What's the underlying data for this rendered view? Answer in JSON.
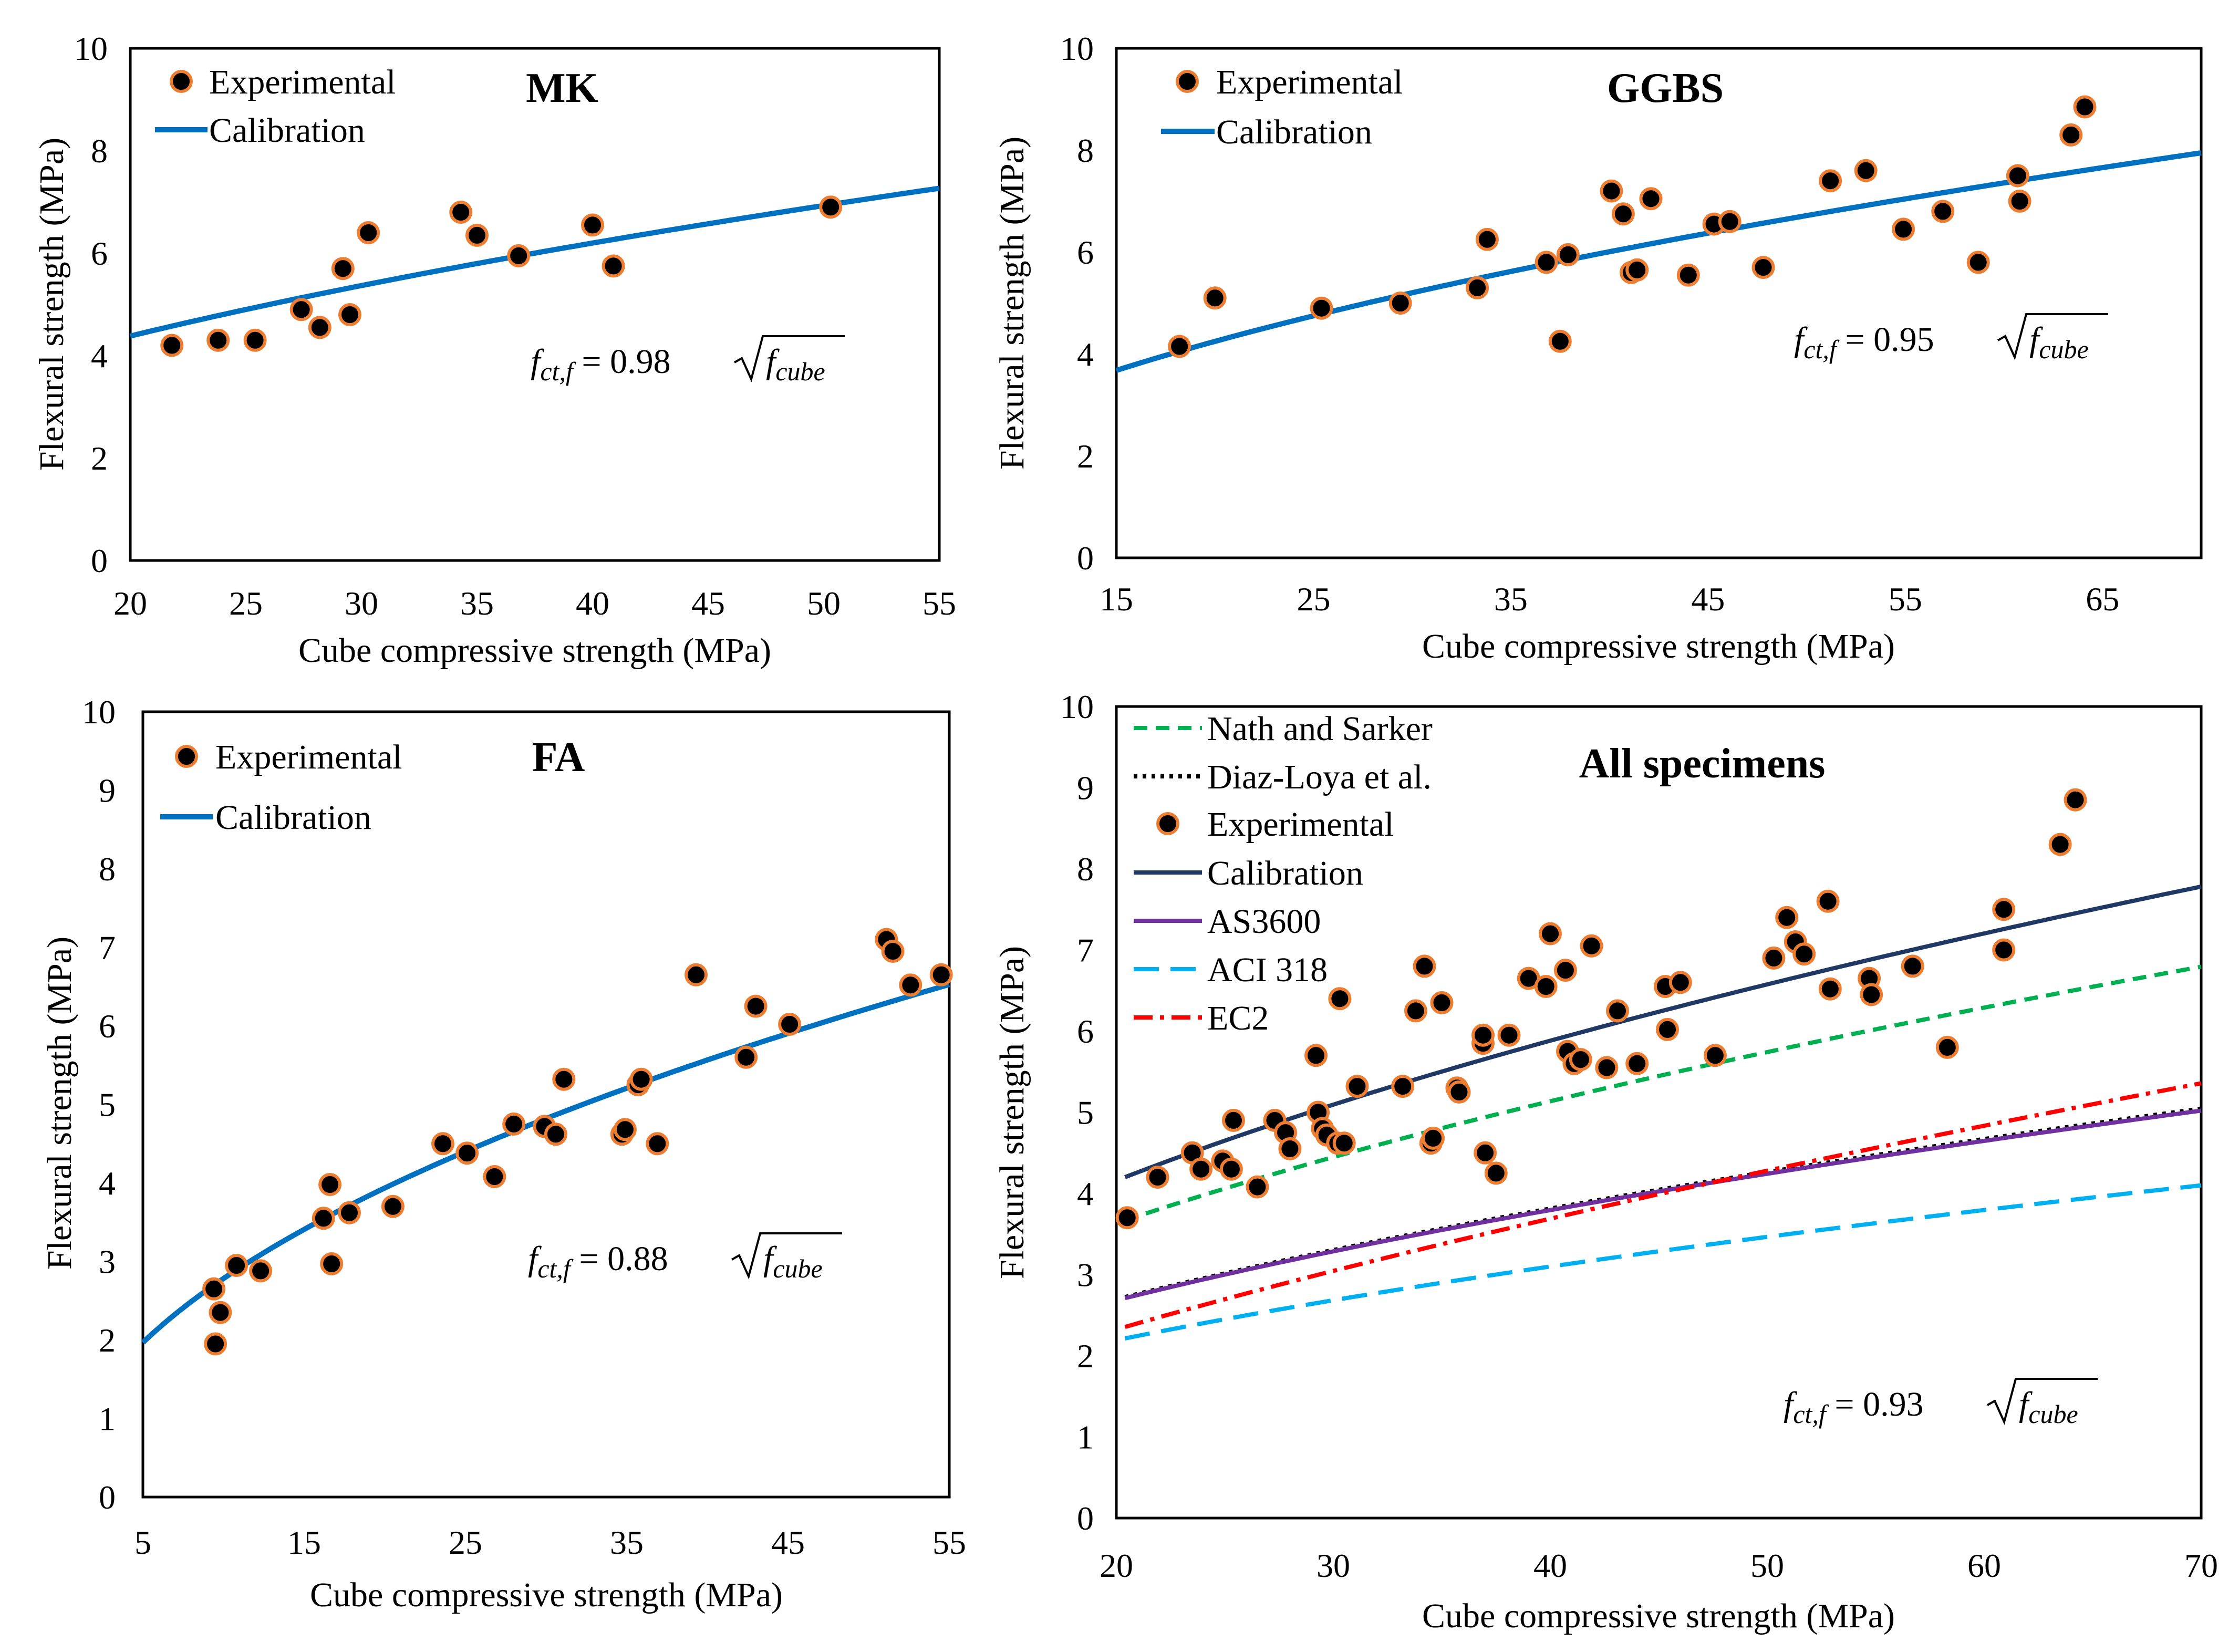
{
  "colors": {
    "marker_fill": "#000000",
    "marker_edge": "#ED7D31",
    "calibration_light": "#0070C0",
    "calibration_dark": "#1F3864",
    "nath": "#00B050",
    "diaz": "#000000",
    "as3600": "#7030A0",
    "aci": "#00B0F0",
    "ec2": "#FF0000"
  },
  "chart_data": [
    {
      "id": "mk",
      "type": "scatter",
      "title": "MK",
      "xlabel": "Cube compressive strength (MPa)",
      "ylabel": "Flexural strength (MPa)",
      "xlim": [
        20,
        55
      ],
      "ylim": [
        0,
        10
      ],
      "xticks": [
        20,
        25,
        30,
        35,
        40,
        45,
        50,
        55
      ],
      "yticks": [
        0,
        2,
        4,
        6,
        8,
        10
      ],
      "legend": [
        "Experimental",
        "Calibration"
      ],
      "equation": {
        "lhs": "f",
        "lhs_sub": "ct,f",
        "eq": " = ",
        "coef": "0.98",
        "rad": "f",
        "rad_sub": "cube"
      },
      "experimental": {
        "x": [
          21.8,
          23.8,
          25.4,
          27.4,
          28.2,
          29.2,
          29.5,
          30.3,
          34.3,
          35.0,
          36.8,
          40.0,
          40.9,
          50.3
        ],
        "y": [
          4.2,
          4.3,
          4.3,
          4.9,
          4.55,
          5.7,
          4.8,
          6.4,
          6.8,
          6.35,
          5.95,
          6.55,
          5.75,
          6.9
        ]
      },
      "curves": [
        {
          "name": "Calibration",
          "coef": 0.98,
          "x_range": [
            20,
            55
          ],
          "color_key": "calibration_light",
          "width": 10,
          "dash": ""
        }
      ]
    },
    {
      "id": "ggbs",
      "type": "scatter",
      "title": "GGBS",
      "xlabel": "Cube compressive strength (MPa)",
      "ylabel": "Flexural strength (MPa)",
      "xlim": [
        15,
        70
      ],
      "ylim": [
        0,
        10
      ],
      "xticks": [
        15,
        25,
        35,
        45,
        55,
        65
      ],
      "yticks": [
        0,
        2,
        4,
        6,
        8,
        10
      ],
      "legend": [
        "Experimental",
        "Calibration"
      ],
      "equation": {
        "lhs": "f",
        "lhs_sub": "ct,f",
        "eq": " = ",
        "coef": "0.95",
        "rad": "f",
        "rad_sub": "cube"
      },
      "experimental": {
        "x": [
          18.2,
          20.0,
          25.4,
          29.4,
          33.3,
          33.8,
          36.8,
          37.5,
          37.9,
          40.1,
          40.7,
          41.1,
          41.4,
          42.1,
          44.0,
          45.3,
          46.1,
          47.8,
          51.2,
          53.0,
          54.9,
          56.9,
          58.7,
          60.7,
          60.8,
          63.4,
          64.1
        ],
        "y": [
          4.15,
          5.1,
          4.9,
          5.0,
          5.3,
          6.25,
          5.8,
          4.25,
          5.95,
          7.2,
          6.75,
          5.6,
          5.65,
          7.05,
          5.55,
          6.55,
          6.6,
          5.7,
          7.4,
          7.6,
          6.45,
          6.8,
          5.8,
          7.5,
          7.0,
          8.3,
          8.85
        ]
      },
      "curves": [
        {
          "name": "Calibration",
          "coef": 0.95,
          "x_range": [
            15,
            70
          ],
          "color_key": "calibration_light",
          "width": 10,
          "dash": ""
        }
      ]
    },
    {
      "id": "fa",
      "type": "scatter",
      "title": "FA",
      "xlabel": "Cube compressive strength (MPa)",
      "ylabel": "Flexural strength (MPa)",
      "xlim": [
        5,
        55
      ],
      "ylim": [
        0,
        10
      ],
      "xticks": [
        5,
        15,
        25,
        35,
        45,
        55
      ],
      "yticks": [
        0,
        1,
        2,
        3,
        4,
        5,
        6,
        7,
        8,
        9,
        10
      ],
      "legend": [
        "Experimental",
        "Calibration"
      ],
      "equation": {
        "lhs": "f",
        "lhs_sub": "ct,f",
        "eq": " = ",
        "coef": "0.88",
        "rad": "f",
        "rad_sub": "cube"
      },
      "experimental": {
        "x": [
          9.4,
          9.5,
          9.8,
          10.8,
          12.3,
          16.2,
          16.6,
          16.7,
          17.8,
          20.5,
          23.6,
          25.1,
          26.8,
          28.0,
          29.9,
          30.6,
          31.1,
          34.7,
          34.9,
          35.7,
          35.9,
          36.9,
          39.3,
          42.4,
          43.0,
          45.1,
          51.1,
          51.5,
          52.6,
          54.5
        ],
        "y": [
          2.65,
          1.95,
          2.35,
          2.95,
          2.88,
          3.55,
          3.98,
          2.97,
          3.62,
          3.7,
          4.5,
          4.38,
          4.08,
          4.75,
          4.72,
          4.62,
          5.32,
          4.62,
          4.68,
          5.25,
          5.32,
          4.5,
          6.65,
          5.6,
          6.25,
          6.02,
          7.1,
          6.95,
          6.52,
          6.65
        ]
      },
      "curves": [
        {
          "name": "Calibration",
          "coef": 0.88,
          "x_range": [
            5,
            55
          ],
          "color_key": "calibration_light",
          "width": 10,
          "dash": ""
        }
      ]
    },
    {
      "id": "all",
      "type": "scatter",
      "title": "All specimens",
      "xlabel": "Cube compressive strength (MPa)",
      "ylabel": "Flexural strength (MPa)",
      "xlim": [
        20,
        70
      ],
      "ylim": [
        0,
        10
      ],
      "xticks": [
        20,
        30,
        40,
        50,
        60,
        70
      ],
      "yticks": [
        0,
        1,
        2,
        3,
        4,
        5,
        6,
        7,
        8,
        9,
        10
      ],
      "legend": [
        "Nath and Sarker",
        "Diaz-Loya et al.",
        "Experimental",
        "Calibration",
        "AS3600",
        "ACI 318",
        "EC2"
      ],
      "equation": {
        "lhs": "f",
        "lhs_sub": "ct,f",
        "eq": " = ",
        "coef": "0.93",
        "rad": "f",
        "rad_sub": "cube"
      },
      "experimental": {
        "x": [
          20.5,
          21.9,
          23.5,
          23.9,
          24.9,
          25.3,
          25.4,
          26.5,
          27.3,
          27.8,
          28.0,
          29.2,
          29.3,
          29.5,
          29.7,
          30.2,
          30.3,
          30.5,
          31.1,
          33.2,
          33.8,
          34.2,
          34.5,
          34.6,
          35.0,
          35.7,
          35.8,
          36.9,
          36.9,
          37.0,
          37.5,
          38.1,
          39.0,
          39.8,
          40.0,
          40.7,
          40.8,
          41.1,
          41.4,
          41.9,
          42.6,
          43.1,
          44.0,
          45.3,
          45.4,
          46.0,
          47.6,
          50.3,
          50.9,
          51.3,
          51.7,
          52.8,
          52.9,
          54.7,
          54.8,
          56.7,
          58.3,
          60.9,
          60.9,
          63.5,
          64.2
        ],
        "y": [
          3.7,
          4.2,
          4.5,
          4.3,
          4.4,
          4.3,
          4.9,
          4.08,
          4.9,
          4.75,
          4.55,
          5.7,
          5.0,
          4.8,
          4.72,
          4.62,
          6.4,
          4.62,
          5.32,
          5.32,
          6.25,
          6.8,
          4.62,
          4.68,
          6.35,
          5.3,
          5.25,
          5.85,
          5.95,
          4.5,
          4.25,
          5.95,
          6.65,
          6.55,
          7.2,
          6.75,
          5.75,
          5.6,
          5.65,
          7.05,
          5.55,
          6.25,
          5.6,
          6.55,
          6.02,
          6.6,
          5.7,
          6.9,
          7.4,
          7.1,
          6.95,
          7.6,
          6.52,
          6.65,
          6.45,
          6.8,
          5.8,
          7.5,
          7.0,
          8.3,
          8.85
        ]
      },
      "curves": [
        {
          "name": "Nath and Sarker",
          "coef": 0.812,
          "x_range": [
            20.4,
            70
          ],
          "color_key": "nath",
          "width": 8,
          "dash": "26 16"
        },
        {
          "name": "Diaz-Loya et al.",
          "coef": 0.603,
          "x_range": [
            20.4,
            70
          ],
          "color_key": "diaz",
          "width": 8,
          "dash": "7 10"
        },
        {
          "name": "Calibration",
          "coef": 0.93,
          "x_range": [
            20.4,
            70
          ],
          "color_key": "calibration_dark",
          "width": 8,
          "dash": ""
        },
        {
          "name": "AS3600",
          "coef": 0.6,
          "x_range": [
            20.4,
            70
          ],
          "color_key": "as3600",
          "width": 8,
          "dash": ""
        },
        {
          "name": "ACI 318",
          "coef": 0.49,
          "x_range": [
            20.4,
            70
          ],
          "color_key": "aci",
          "width": 8,
          "dash": "48 22"
        },
        {
          "name": "EC2",
          "kind": "ec2",
          "x_range": [
            20.4,
            70
          ],
          "color_key": "ec2",
          "width": 8,
          "dash": "36 14 8 14"
        }
      ]
    }
  ]
}
